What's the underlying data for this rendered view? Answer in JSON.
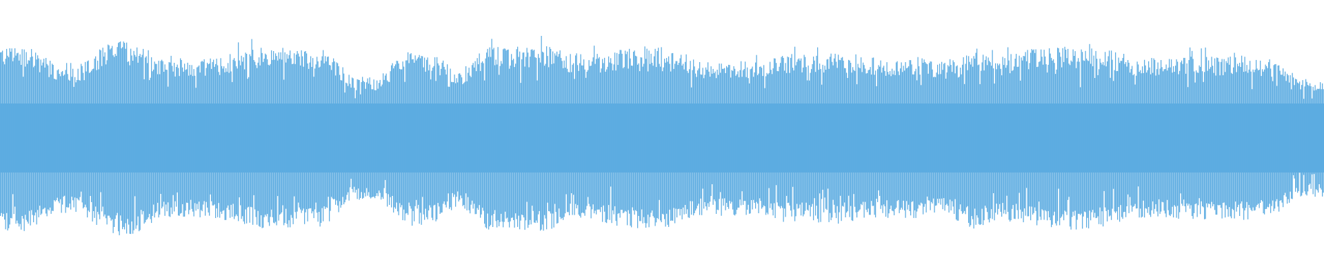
{
  "waveform": {
    "color": "#5DACE1",
    "background": "#FFFFFF",
    "envelope": [
      0.63,
      0.63,
      0.51,
      0.51,
      0.66,
      0.66,
      0.54,
      0.54,
      0.55,
      0.6,
      0.62,
      0.6,
      0.6,
      0.42,
      0.42,
      0.6,
      0.58,
      0.45,
      0.62,
      0.62,
      0.64,
      0.58,
      0.57,
      0.6,
      0.63,
      0.6,
      0.52,
      0.53,
      0.52,
      0.57,
      0.57,
      0.58,
      0.56,
      0.54,
      0.55,
      0.52,
      0.62,
      0.55,
      0.6,
      0.62,
      0.62,
      0.6,
      0.55,
      0.54,
      0.56,
      0.55,
      0.56,
      0.54,
      0.42,
      0.4
    ]
  }
}
